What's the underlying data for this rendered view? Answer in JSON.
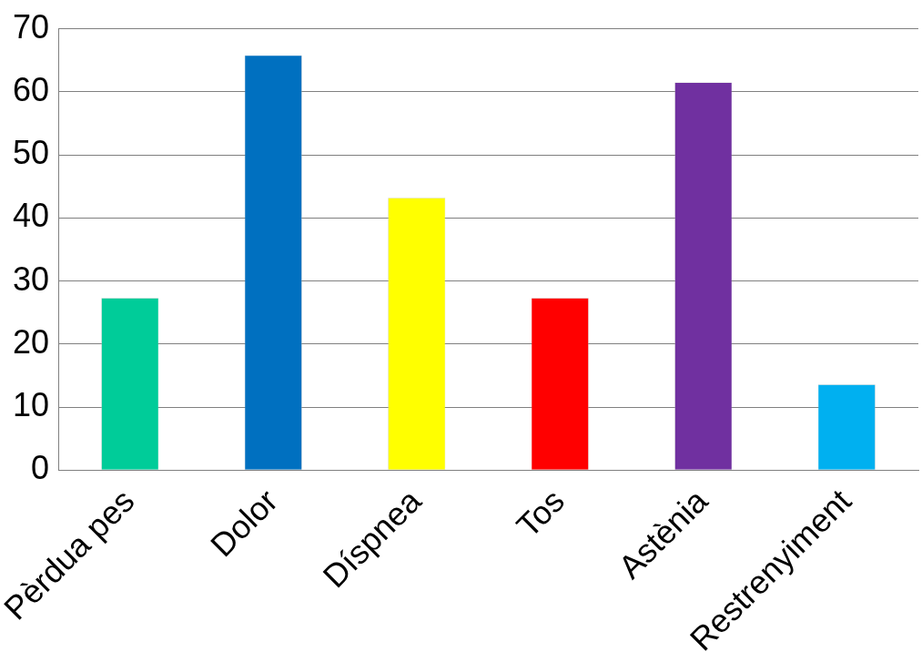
{
  "chart_data": {
    "type": "bar",
    "categories": [
      "Pèrdua pes",
      "Dolor",
      "Díspnea",
      "Tos",
      "Astènia",
      "Restrenyiment"
    ],
    "values": [
      27.3,
      65.8,
      43.2,
      27.3,
      61.5,
      13.6
    ],
    "colors": [
      "#00cc99",
      "#0070c0",
      "#ffff00",
      "#ff0000",
      "#7030a0",
      "#00b0f0"
    ],
    "ylim": [
      0,
      70
    ],
    "yticks": [
      0,
      10,
      20,
      30,
      40,
      50,
      60,
      70
    ],
    "grid": "y",
    "legend": false
  }
}
